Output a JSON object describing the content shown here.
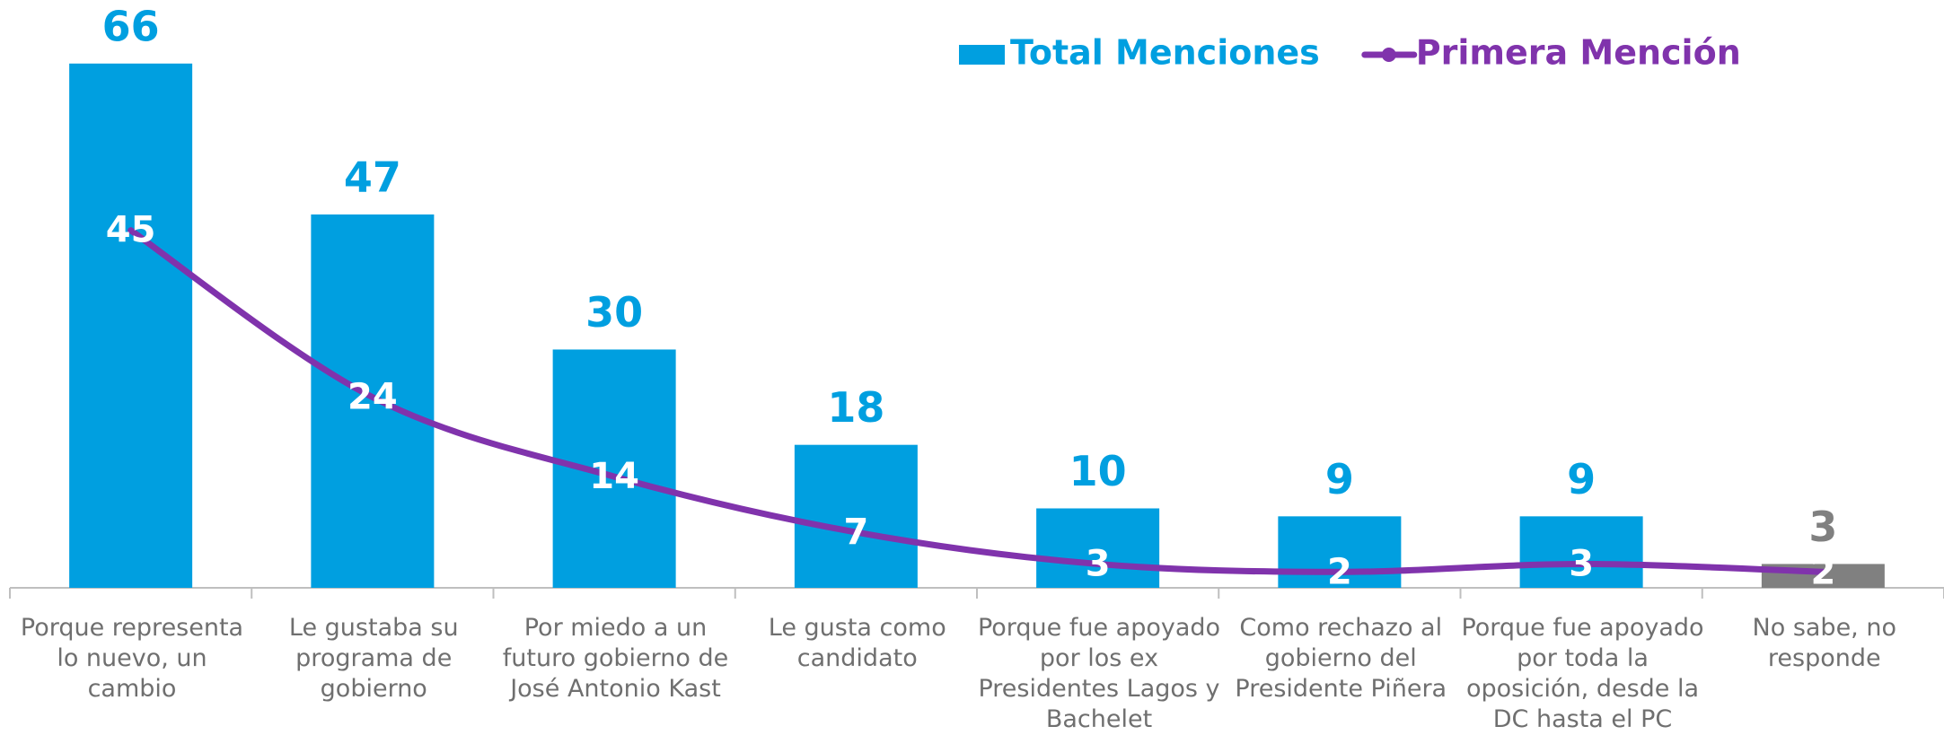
{
  "chart_data": {
    "type": "bar_line",
    "categories": [
      "Porque representa lo nuevo, un cambio",
      "Le gustaba su programa de gobierno",
      "Por miedo a un futuro gobierno de José Antonio Kast",
      "Le gusta como candidato",
      "Porque fue apoyado por los ex Presidentes Lagos y Bachelet",
      "Como rechazo al gobierno del Presidente Piñera",
      "Porque fue apoyado por toda la oposición, desde la DC hasta el PC",
      "No sabe, no responde"
    ],
    "series": [
      {
        "name": "Total Menciones",
        "type": "bar",
        "color": "#009fe0",
        "bar_colors": [
          "#009fe0",
          "#009fe0",
          "#009fe0",
          "#009fe0",
          "#009fe0",
          "#009fe0",
          "#009fe0",
          "#808080"
        ],
        "values": [
          66,
          47,
          30,
          18,
          10,
          9,
          9,
          3
        ]
      },
      {
        "name": "Primera Mención",
        "type": "line",
        "color": "#8033ac",
        "values": [
          45,
          24,
          14,
          7,
          3,
          2,
          3,
          2
        ]
      }
    ],
    "ylim": [
      0,
      74
    ],
    "legend": "top-right"
  }
}
